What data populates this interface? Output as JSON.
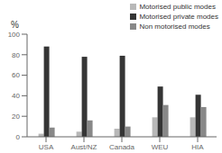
{
  "chart_data": {
    "type": "bar",
    "ylabel": "%",
    "categories": [
      "USA",
      "Aust/NZ",
      "Canada",
      "WEU",
      "HIA"
    ],
    "series": [
      {
        "name": "Motorised public modes",
        "color": "#b8b8b8",
        "values": [
          3,
          5,
          8,
          19,
          19
        ]
      },
      {
        "name": "Motorised private modes",
        "color": "#353535",
        "values": [
          88,
          78,
          79,
          49,
          41
        ]
      },
      {
        "name": "Non motorised modes",
        "color": "#888888",
        "values": [
          9,
          16,
          10,
          31,
          29
        ]
      }
    ],
    "ylim": [
      0,
      100
    ],
    "yticks": [
      0,
      20,
      40,
      60,
      80,
      100
    ],
    "legend": "upper right",
    "grid": false
  }
}
